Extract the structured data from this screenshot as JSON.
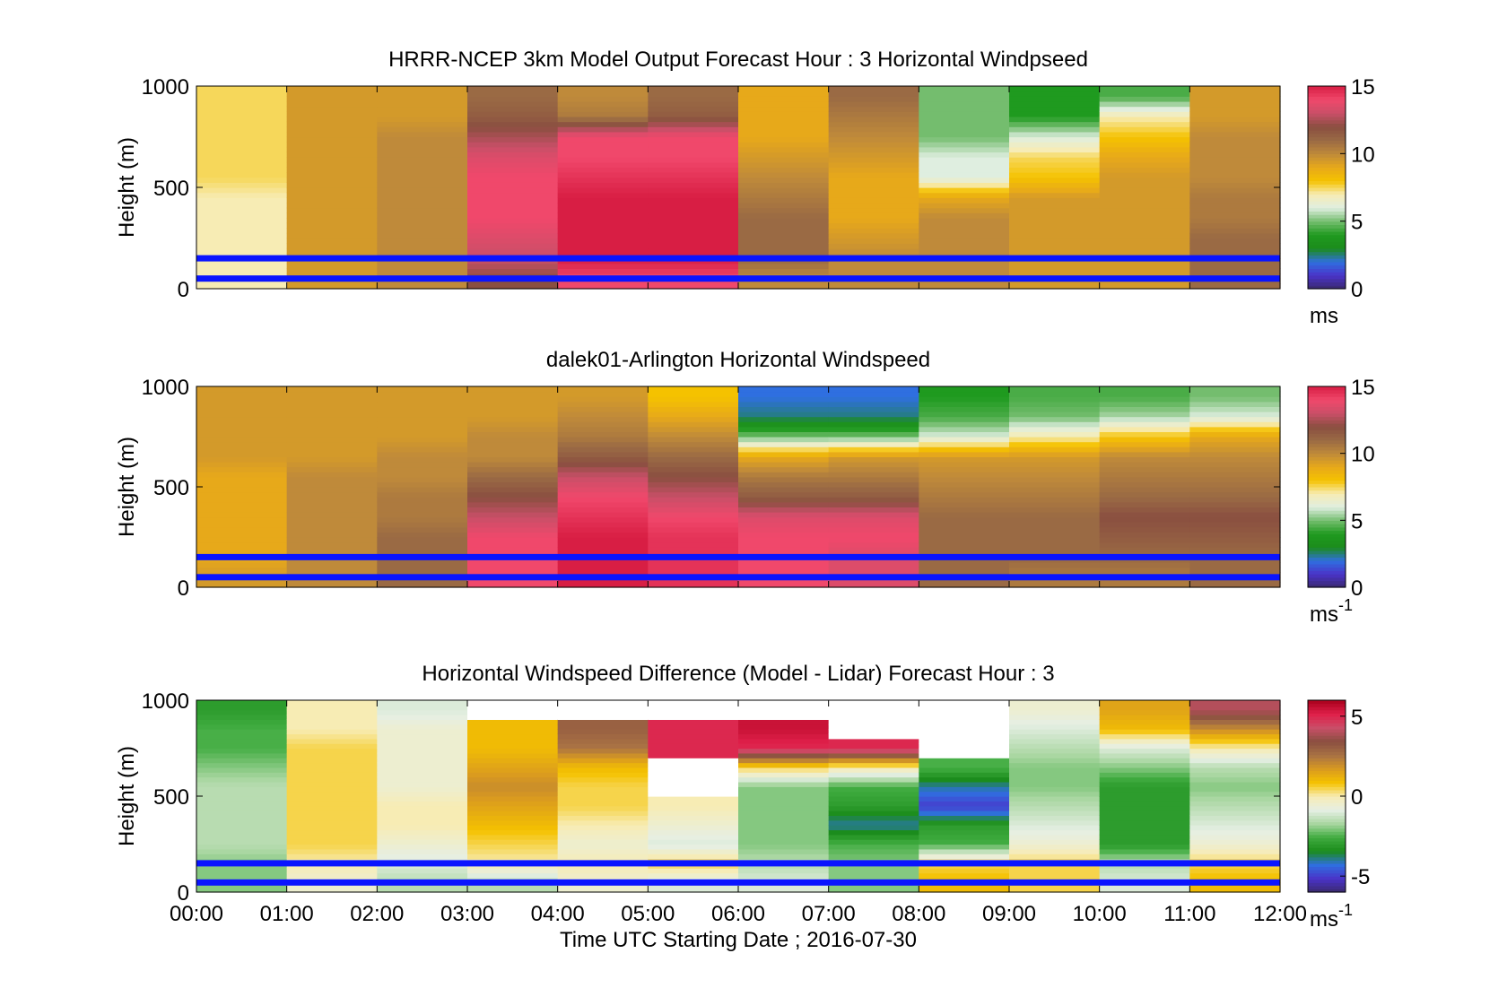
{
  "xlabel": "Time UTC  Starting Date ; 2016-07-30",
  "x_ticks": [
    "00:00",
    "01:00",
    "02:00",
    "03:00",
    "04:00",
    "05:00",
    "06:00",
    "07:00",
    "08:00",
    "09:00",
    "10:00",
    "11:00",
    "12:00"
  ],
  "y_ticks": [
    "0",
    "500",
    "1000"
  ],
  "ylabel": "Height (m)",
  "colors": {
    "reference_lines": "#0a14ff",
    "colormap_speed": [
      "#3a2a6e",
      "#4a33c8",
      "#2f6fe0",
      "#1b8c1b",
      "#1f9a1f",
      "#74bd6e",
      "#dfeee0",
      "#f7ecb4",
      "#f5c200",
      "#e7a91a",
      "#bf8a3a",
      "#9a6a44",
      "#8a4f40",
      "#c94f68",
      "#f0486b",
      "#d81e44"
    ],
    "colormap_diff": [
      "#3a2a6e",
      "#4a33c8",
      "#2f6fe0",
      "#1b8c1b",
      "#3fab3f",
      "#a8d6a0",
      "#e6efe4",
      "#f7ecb4",
      "#f5c200",
      "#d99a20",
      "#a87244",
      "#8a4f40",
      "#c94f68",
      "#e0204a",
      "#a8001c"
    ]
  },
  "chart_data": [
    {
      "type": "heatmap",
      "title": "HRRR-NCEP 3km Model Output   Forecast Hour : 3 Horizontal Windpseed",
      "xlabel": "",
      "ylabel": "Height (m)",
      "x_range": [
        "00:00",
        "12:00"
      ],
      "ylim": [
        0,
        1000
      ],
      "reference_lines_m": [
        150,
        50
      ],
      "colorbar": {
        "ticks": [
          "15",
          "10",
          "5",
          "0"
        ],
        "range": [
          0,
          15
        ],
        "unit": "ms"
      },
      "hourly_columns": [
        {
          "hour": "00:00",
          "profile_ms": [
            7,
            7,
            7,
            7,
            7,
            7.5,
            7.5,
            7.5,
            7.5,
            7.5
          ]
        },
        {
          "hour": "01:00",
          "profile_ms": [
            9.5,
            9.5,
            9.5,
            9.5,
            9.5,
            9.5,
            9.5,
            9.5,
            9.5,
            9.5
          ]
        },
        {
          "hour": "02:00",
          "profile_ms": [
            10,
            10,
            10,
            10,
            10,
            10,
            10,
            10,
            9.5,
            9.5
          ]
        },
        {
          "hour": "03:00",
          "profile_ms": [
            12,
            13,
            13.5,
            14,
            14,
            14,
            13.5,
            12.5,
            11.5,
            11
          ]
        },
        {
          "hour": "04:00",
          "profile_ms": [
            14,
            15,
            15,
            15,
            15,
            14.5,
            14,
            14,
            10.5,
            10
          ]
        },
        {
          "hour": "05:00",
          "profile_ms": [
            14,
            15,
            15,
            15,
            15,
            14.5,
            14,
            14,
            11.5,
            11
          ]
        },
        {
          "hour": "06:00",
          "profile_ms": [
            10,
            11,
            11,
            11,
            10.5,
            10,
            9.5,
            9,
            9,
            9
          ]
        },
        {
          "hour": "07:00",
          "profile_ms": [
            10,
            10,
            9.5,
            9,
            9,
            9,
            9.5,
            10,
            10.5,
            11
          ]
        },
        {
          "hour": "08:00",
          "profile_ms": [
            10,
            10,
            10,
            10,
            9,
            6,
            6,
            5,
            5,
            5
          ]
        },
        {
          "hour": "09:00",
          "profile_ms": [
            9.5,
            9.5,
            9.5,
            9.5,
            9.5,
            8,
            7.5,
            6,
            4,
            4
          ]
        },
        {
          "hour": "10:00",
          "profile_ms": [
            9.5,
            9.5,
            9.5,
            9.5,
            9.5,
            9.5,
            9,
            8,
            7,
            4.5
          ]
        },
        {
          "hour": "11:00",
          "profile_ms": [
            11,
            11,
            11,
            10.5,
            10.5,
            10,
            10,
            10,
            9.5,
            9.5
          ]
        }
      ]
    },
    {
      "type": "heatmap",
      "title": "dalek01-Arlington  Horizontal Windspeed",
      "xlabel": "",
      "ylabel": "Height (m)",
      "x_range": [
        "00:00",
        "12:00"
      ],
      "ylim": [
        0,
        1000
      ],
      "reference_lines_m": [
        150,
        50
      ],
      "colorbar": {
        "ticks": [
          "15",
          "10",
          "5",
          "0"
        ],
        "range": [
          0,
          15
        ],
        "unit": "ms-1"
      },
      "hourly_columns": [
        {
          "hour": "00:00",
          "profile_ms": [
            9.5,
            9,
            9,
            9,
            9,
            9,
            9.5,
            9.5,
            9.5,
            9.5
          ]
        },
        {
          "hour": "01:00",
          "profile_ms": [
            10,
            10,
            10,
            10,
            10,
            10,
            9.5,
            9.5,
            9.5,
            9.5
          ]
        },
        {
          "hour": "02:00",
          "profile_ms": [
            11,
            11,
            11,
            10.5,
            10.5,
            10,
            10,
            9.5,
            9.5,
            9.5
          ]
        },
        {
          "hour": "03:00",
          "profile_ms": [
            14,
            14,
            14,
            13,
            12,
            11,
            10,
            10,
            9.5,
            9.5
          ]
        },
        {
          "hour": "04:00",
          "profile_ms": [
            15,
            15,
            15,
            14.5,
            14,
            13,
            11.5,
            10.5,
            10,
            9.5
          ]
        },
        {
          "hour": "05:00",
          "profile_ms": [
            14.5,
            14.5,
            14.5,
            14,
            13,
            12,
            11,
            10,
            9,
            8
          ]
        },
        {
          "hour": "06:00",
          "profile_ms": [
            14,
            14,
            14,
            13.5,
            11.5,
            10.5,
            9,
            5,
            2.5,
            2
          ]
        },
        {
          "hour": "07:00",
          "profile_ms": [
            13.5,
            13.5,
            14,
            13.5,
            11.5,
            10.5,
            9.5,
            5,
            2.5,
            2
          ]
        },
        {
          "hour": "08:00",
          "profile_ms": [
            11,
            11,
            11,
            11,
            10.5,
            10,
            9.5,
            6,
            4.5,
            4
          ]
        },
        {
          "hour": "09:00",
          "profile_ms": [
            10.5,
            11,
            11,
            11,
            10.5,
            10,
            9.5,
            7,
            5,
            4.5
          ]
        },
        {
          "hour": "10:00",
          "profile_ms": [
            10.5,
            11,
            11.5,
            12,
            11,
            10.5,
            10,
            8,
            5.5,
            4.5
          ]
        },
        {
          "hour": "11:00",
          "profile_ms": [
            11,
            11,
            11.5,
            12,
            11,
            10.5,
            10,
            9,
            6,
            5
          ]
        }
      ]
    },
    {
      "type": "heatmap",
      "title": "Horizontal Windspeed Difference (Model - Lidar) Forecast Hour : 3",
      "xlabel": "Time UTC  Starting Date ; 2016-07-30",
      "ylabel": "Height (m)",
      "x_range": [
        "00:00",
        "12:00"
      ],
      "ylim": [
        0,
        1000
      ],
      "reference_lines_m": [
        150,
        50
      ],
      "colorbar": {
        "ticks": [
          "5",
          "0",
          "-5"
        ],
        "range": [
          -6,
          6
        ],
        "unit": "ms-1"
      },
      "hourly_columns": [
        {
          "hour": "00:00",
          "profile_ms": [
            -2,
            -2,
            -1.5,
            -1.5,
            -1.5,
            -1.5,
            -2,
            -2.5,
            -2.5,
            -3
          ]
        },
        {
          "hour": "01:00",
          "profile_ms": [
            -0.5,
            0,
            0.5,
            0.5,
            0.5,
            0.5,
            0.5,
            0.5,
            0,
            0
          ]
        },
        {
          "hour": "02:00",
          "profile_ms": [
            -1.5,
            -1,
            -0.5,
            0,
            0,
            -0.5,
            -0.5,
            -0.5,
            -0.5,
            -1
          ]
        },
        {
          "hour": "03:00",
          "profile_ms": [
            -1.5,
            0,
            0.5,
            1,
            1.5,
            2,
            1.5,
            1,
            1,
            null
          ]
        },
        {
          "hour": "04:00",
          "profile_ms": [
            -0.5,
            0,
            -0.5,
            0,
            0.5,
            0.5,
            1,
            2.5,
            3,
            null
          ]
        },
        {
          "hour": "05:00",
          "profile_ms": [
            -1,
            0.5,
            -1,
            -0.5,
            0,
            null,
            null,
            5,
            5,
            null
          ]
        },
        {
          "hour": "06:00",
          "profile_ms": [
            -1,
            -1.5,
            -2,
            -2,
            -2,
            -2,
            0.5,
            5,
            5.5,
            null
          ]
        },
        {
          "hour": "07:00",
          "profile_ms": [
            -2,
            -2,
            -2.5,
            -4,
            -3,
            -2.5,
            0,
            5,
            null,
            null
          ]
        },
        {
          "hour": "08:00",
          "profile_ms": [
            1,
            0.5,
            -2.5,
            -3,
            -5,
            -4,
            -2.5,
            null,
            null,
            null
          ]
        },
        {
          "hour": "09:00",
          "profile_ms": [
            0.5,
            0.5,
            -0.5,
            -1,
            -1.5,
            -2,
            -2,
            -1.5,
            -1,
            -0.5
          ]
        },
        {
          "hour": "10:00",
          "profile_ms": [
            -1,
            -1.5,
            -3,
            -3,
            -3,
            -3,
            -2,
            -1,
            1,
            1.5
          ]
        },
        {
          "hour": "11:00",
          "profile_ms": [
            1,
            0.5,
            -0.5,
            -1,
            -1.5,
            -2,
            -1.5,
            0,
            2,
            4
          ]
        }
      ]
    }
  ]
}
